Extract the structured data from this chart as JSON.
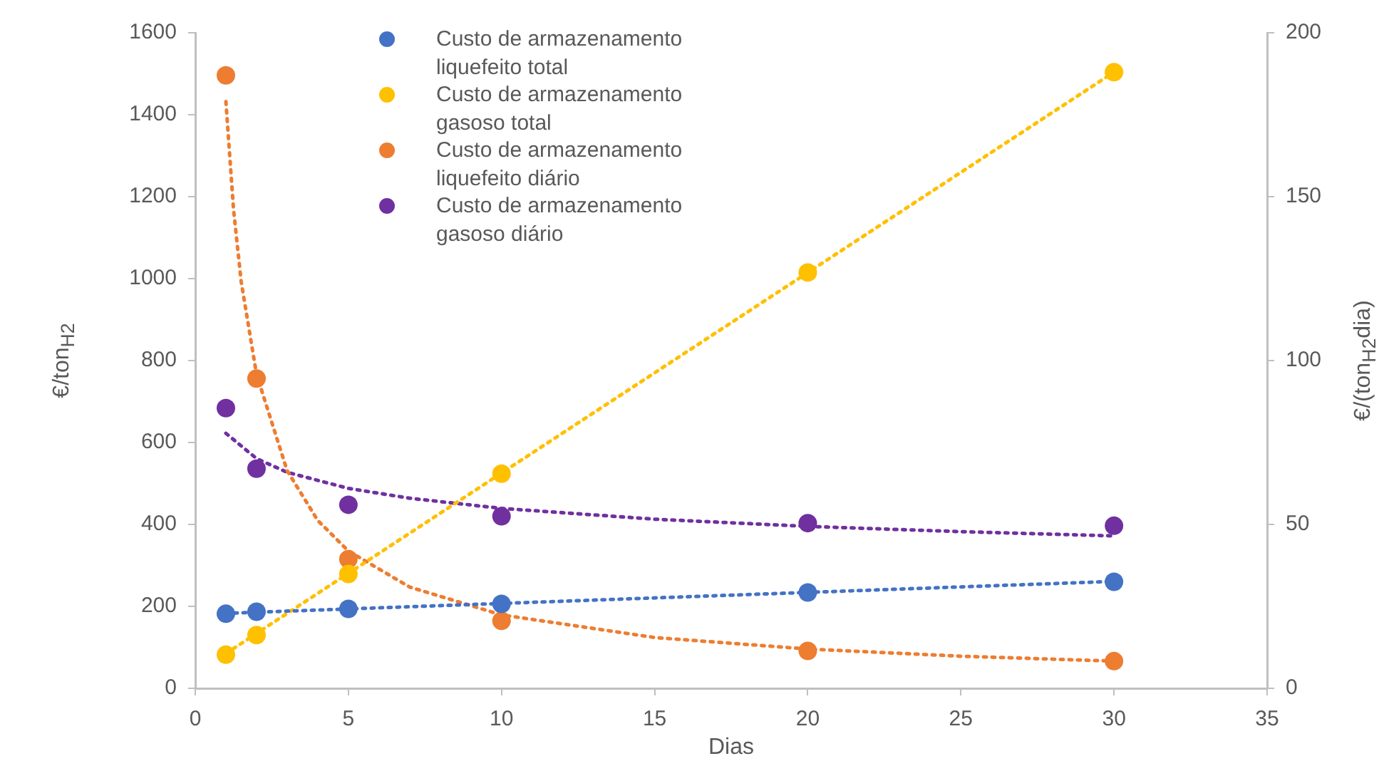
{
  "chart_data": {
    "type": "scatter",
    "xlabel": "Dias",
    "ylabel": "€/ton$_{H2}$",
    "y2label": "€/(ton$_{H2}$dia)",
    "xlim": [
      0,
      35
    ],
    "xticks": [
      0,
      5,
      10,
      15,
      20,
      25,
      30,
      35
    ],
    "ylim": [
      0,
      1600
    ],
    "yticks": [
      0,
      200,
      400,
      600,
      800,
      1000,
      1200,
      1400,
      1600
    ],
    "y2lim": [
      0,
      200
    ],
    "y2ticks": [
      0,
      50,
      100,
      150,
      200
    ],
    "grid": false,
    "legend": "top",
    "marker": "circle",
    "x": [
      1,
      2,
      5,
      10,
      20,
      30
    ],
    "series": [
      {
        "name": "Custo de armazenamento liquefeito total",
        "color": "#4472c4",
        "values": [
          182,
          187,
          194,
          206,
          234,
          260
        ]
      },
      {
        "name": "Custo de armazenamento gasoso total",
        "color": "#ffc000",
        "values": [
          82,
          130,
          279,
          524,
          1015,
          1504
        ]
      },
      {
        "name": "Custo de armazenamento liquefeito diário",
        "color": "#ed7d31",
        "axis": "y2",
        "values": [
          187,
          94.5,
          39.4,
          20.6,
          11.4,
          8.3
        ]
      },
      {
        "name": "Custo de armazenamento gasoso diário",
        "color": "#7030a0",
        "axis": "y2",
        "values": [
          85.5,
          67,
          56,
          52.5,
          50.4,
          49.6
        ]
      },
      {
        "type": "line",
        "color": "#4472c4",
        "line_style": "dotted",
        "marker": "none",
        "x": [
          1,
          30
        ],
        "values": [
          183,
          261
        ]
      },
      {
        "type": "line",
        "color": "#ffc000",
        "line_style": "dotted",
        "marker": "none",
        "x": [
          1,
          30
        ],
        "values": [
          85,
          1504
        ]
      },
      {
        "type": "line",
        "color": "#ed7d31",
        "line_style": "dotted",
        "marker": "none",
        "axis": "y2",
        "x": [
          1,
          1.25,
          1.5,
          2,
          3,
          4,
          5,
          7,
          10,
          15,
          20,
          25,
          30
        ],
        "values": [
          179,
          146,
          124,
          95.8,
          66.4,
          51.2,
          41.9,
          30.9,
          22.4,
          15.5,
          12,
          9.8,
          8.3
        ]
      },
      {
        "type": "line",
        "color": "#7030a0",
        "line_style": "dotted",
        "marker": "none",
        "axis": "y2",
        "x": [
          1,
          2,
          3,
          5,
          7,
          10,
          15,
          20,
          25,
          30
        ],
        "values": [
          77.8,
          70.1,
          65.9,
          61,
          58,
          54.9,
          51.6,
          49.4,
          47.8,
          46.5
        ]
      }
    ]
  }
}
